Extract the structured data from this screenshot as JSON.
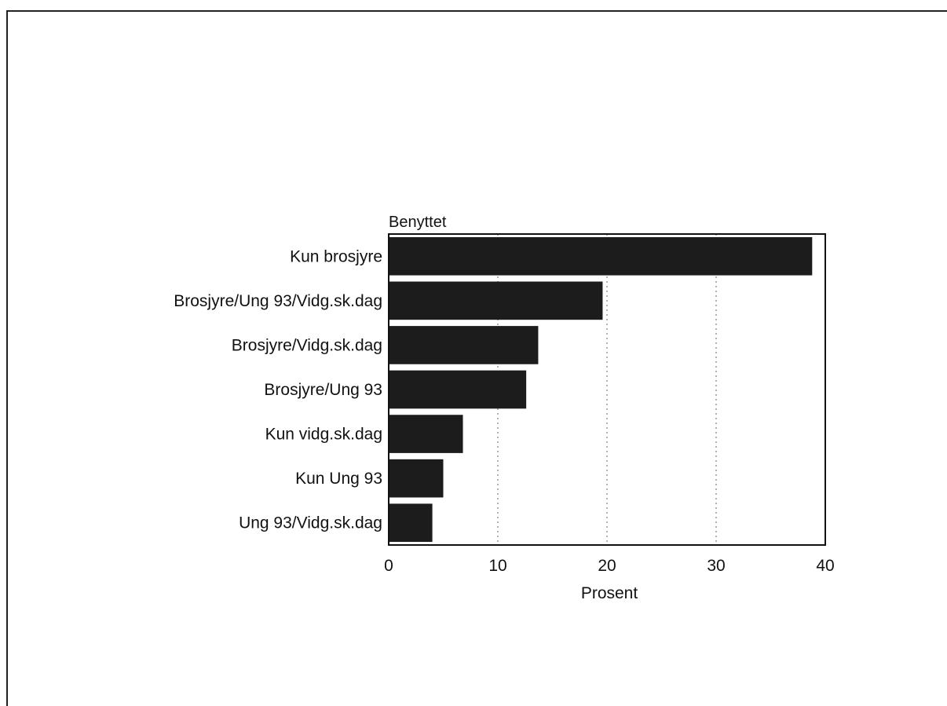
{
  "chart_data": {
    "type": "bar",
    "orientation": "horizontal",
    "title": "Benyttet",
    "xlabel": "Prosent",
    "ylabel": "",
    "categories": [
      "Kun brosjyre",
      "Brosjyre/Ung 93/Vidg.sk.dag",
      "Brosjyre/Vidg.sk.dag",
      "Brosjyre/Ung 93",
      "Kun vidg.sk.dag",
      "Kun Ung 93",
      "Ung 93/Vidg.sk.dag"
    ],
    "values": [
      38.8,
      19.6,
      13.7,
      12.6,
      6.8,
      5.0,
      4.0
    ],
    "xlim": [
      0,
      40
    ],
    "x_ticks": [
      "0",
      "10",
      "20",
      "30",
      "40"
    ],
    "grid": "vertical dotted lines at 10, 20, 30",
    "bar_color": "#1c1c1c",
    "grid_color": "#999999"
  }
}
